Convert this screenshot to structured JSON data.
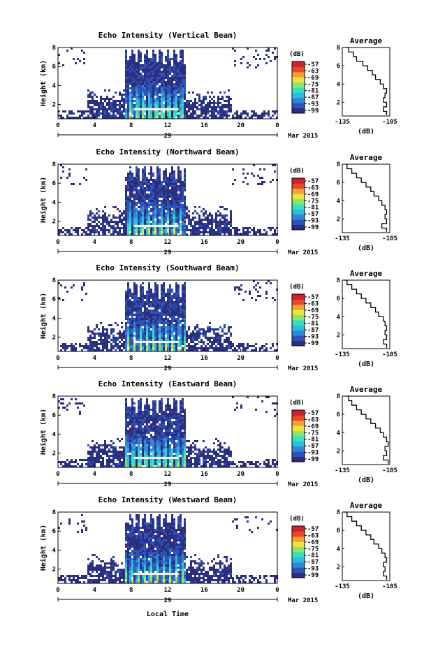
{
  "chart_data": [
    {
      "type": "heatmap",
      "title": "Echo Intensity (Vertical Beam)",
      "ylabel": "Height (km)",
      "yticks": [
        "2",
        "4",
        "6",
        "8"
      ],
      "xticks": [
        "0",
        "4",
        "8",
        "12",
        "16",
        "20",
        "0"
      ],
      "date_day": "29",
      "date_month": "Mar 2015",
      "xlim": [
        0,
        24
      ],
      "ylim": [
        0.5,
        8
      ],
      "colorbar_unit": "(dB)",
      "colorbar_ticks": [
        "-57",
        "-63",
        "-69",
        "-75",
        "-81",
        "-87",
        "-93",
        "-99"
      ],
      "profile": {
        "title": "Average",
        "xlabel": "(dB)",
        "xticks": [
          "-135",
          "-105"
        ],
        "yticks": [
          "2",
          "4",
          "6",
          "8"
        ],
        "xlim": [
          -135,
          -105
        ],
        "ylim": [
          0.5,
          8
        ],
        "height": [
          0.6,
          1.0,
          1.5,
          2.0,
          2.5,
          3.0,
          3.5,
          4.0,
          4.5,
          5.0,
          5.5,
          6.0,
          6.5,
          7.0,
          7.5,
          8.0
        ],
        "value": [
          -107,
          -109,
          -107,
          -109,
          -108,
          -107,
          -109,
          -111,
          -114,
          -116,
          -119,
          -122,
          -126,
          -128,
          -131,
          -133
        ]
      }
    },
    {
      "type": "heatmap",
      "title": "Echo Intensity (Northward Beam)",
      "ylabel": "Height (km)",
      "yticks": [
        "2",
        "4",
        "6",
        "8"
      ],
      "xticks": [
        "0",
        "4",
        "8",
        "12",
        "16",
        "20",
        "0"
      ],
      "date_day": "29",
      "date_month": "Mar 2015",
      "xlim": [
        0,
        24
      ],
      "ylim": [
        0.5,
        8
      ],
      "colorbar_unit": "(dB)",
      "colorbar_ticks": [
        "-57",
        "-63",
        "-69",
        "-75",
        "-81",
        "-87",
        "-93",
        "-99"
      ],
      "profile": {
        "title": "Average",
        "xlabel": "(dB)",
        "xticks": [
          "-135",
          "-105"
        ],
        "yticks": [
          "2",
          "4",
          "6",
          "8"
        ],
        "xlim": [
          -135,
          -105
        ],
        "ylim": [
          0.5,
          8
        ],
        "height": [
          0.6,
          1.0,
          1.5,
          2.0,
          2.5,
          3.0,
          3.5,
          4.0,
          4.5,
          5.0,
          5.5,
          6.0,
          6.5,
          7.0,
          7.5,
          8.0
        ],
        "value": [
          -107,
          -110,
          -107,
          -108,
          -107,
          -108,
          -110,
          -112,
          -115,
          -117,
          -120,
          -123,
          -126,
          -129,
          -132,
          -133
        ]
      }
    },
    {
      "type": "heatmap",
      "title": "Echo Intensity (Southward Beam)",
      "ylabel": "Height (km)",
      "yticks": [
        "2",
        "4",
        "6",
        "8"
      ],
      "xticks": [
        "0",
        "4",
        "8",
        "12",
        "16",
        "20",
        "0"
      ],
      "date_day": "29",
      "date_month": "Mar 2015",
      "xlim": [
        0,
        24
      ],
      "ylim": [
        0.5,
        8
      ],
      "colorbar_unit": "(dB)",
      "colorbar_ticks": [
        "-57",
        "-63",
        "-69",
        "-75",
        "-81",
        "-87",
        "-93",
        "-99"
      ],
      "profile": {
        "title": "Average",
        "xlabel": "(dB)",
        "xticks": [
          "-135",
          "-105"
        ],
        "yticks": [
          "2",
          "4",
          "6",
          "8"
        ],
        "xlim": [
          -135,
          -105
        ],
        "ylim": [
          0.5,
          8
        ],
        "height": [
          0.6,
          1.0,
          1.5,
          2.0,
          2.5,
          3.0,
          3.5,
          4.0,
          4.5,
          5.0,
          5.5,
          6.0,
          6.5,
          7.0,
          7.5,
          8.0
        ],
        "value": [
          -107,
          -109,
          -107,
          -108,
          -107,
          -108,
          -109,
          -112,
          -114,
          -117,
          -120,
          -123,
          -126,
          -129,
          -132,
          -134
        ]
      }
    },
    {
      "type": "heatmap",
      "title": "Echo Intensity (Eastward Beam)",
      "ylabel": "Height (km)",
      "yticks": [
        "2",
        "4",
        "6",
        "8"
      ],
      "xticks": [
        "0",
        "4",
        "8",
        "12",
        "16",
        "20",
        "0"
      ],
      "date_day": "29",
      "date_month": "Mar 2015",
      "xlim": [
        0,
        24
      ],
      "ylim": [
        0.5,
        8
      ],
      "colorbar_unit": "(dB)",
      "colorbar_ticks": [
        "-57",
        "-63",
        "-69",
        "-75",
        "-81",
        "-87",
        "-93",
        "-99"
      ],
      "profile": {
        "title": "Average",
        "xlabel": "(dB)",
        "xticks": [
          "-135",
          "-105"
        ],
        "yticks": [
          "2",
          "4",
          "6",
          "8"
        ],
        "xlim": [
          -135,
          -105
        ],
        "ylim": [
          0.5,
          8
        ],
        "height": [
          0.6,
          1.0,
          1.5,
          2.0,
          2.5,
          3.0,
          3.5,
          4.0,
          4.5,
          5.0,
          5.5,
          6.0,
          6.5,
          7.0,
          7.5,
          8.0
        ],
        "value": [
          -106,
          -109,
          -107,
          -108,
          -106,
          -107,
          -109,
          -111,
          -114,
          -117,
          -120,
          -123,
          -126,
          -129,
          -131,
          -133
        ]
      }
    },
    {
      "type": "heatmap",
      "title": "Echo Intensity (Westward Beam)",
      "ylabel": "Height (km)",
      "yticks": [
        "2",
        "4",
        "6",
        "8"
      ],
      "xticks": [
        "0",
        "4",
        "8",
        "12",
        "16",
        "20",
        "0"
      ],
      "date_day": "29",
      "date_month": "Mar 2015",
      "xlabel": "Local Time",
      "xlim": [
        0,
        24
      ],
      "ylim": [
        0.5,
        8
      ],
      "colorbar_unit": "(dB)",
      "colorbar_ticks": [
        "-57",
        "-63",
        "-69",
        "-75",
        "-81",
        "-87",
        "-93",
        "-99"
      ],
      "profile": {
        "title": "Average",
        "xlabel": "(dB)",
        "xticks": [
          "-135",
          "-105"
        ],
        "yticks": [
          "2",
          "4",
          "6",
          "8"
        ],
        "xlim": [
          -135,
          -105
        ],
        "ylim": [
          0.5,
          8
        ],
        "height": [
          0.6,
          1.0,
          1.5,
          2.0,
          2.5,
          3.0,
          3.5,
          4.0,
          4.5,
          5.0,
          5.5,
          6.0,
          6.5,
          7.0,
          7.5,
          8.0
        ],
        "value": [
          -107,
          -109,
          -108,
          -109,
          -107,
          -108,
          -110,
          -112,
          -115,
          -117,
          -120,
          -123,
          -126,
          -129,
          -132,
          -134
        ]
      }
    }
  ],
  "colors": {
    "palette": [
      "#2b2f7e",
      "#2f52b8",
      "#2f86d8",
      "#2cbde0",
      "#33e0c0",
      "#8fe36a",
      "#e6e640",
      "#f5a030",
      "#e84a28",
      "#d0202a"
    ],
    "background": "#2b2f7e",
    "surface_band": "#ffffff"
  }
}
